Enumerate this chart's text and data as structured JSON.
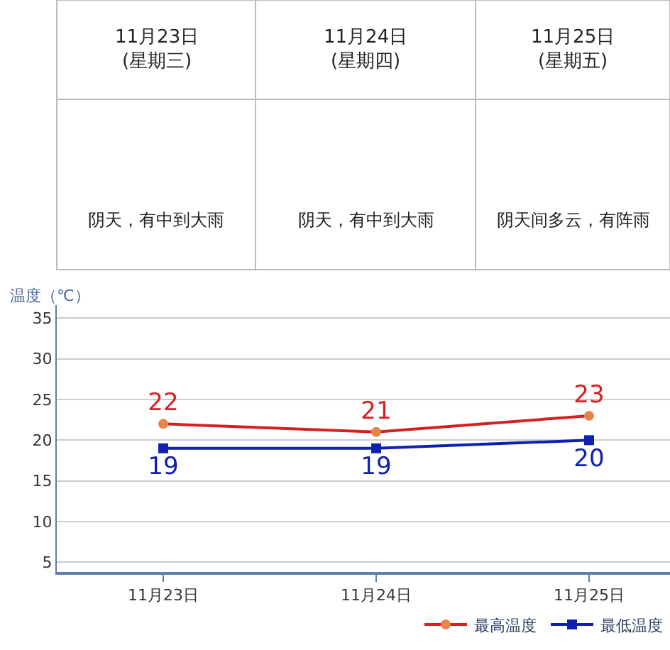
{
  "chart_data": [
    {
      "type": "other",
      "annotations": [
        "11月23日\n(星期三)",
        "阴天，有中到大雨",
        "11月24日\n(星期四)",
        "阴天，有中到大雨",
        "11月25日\n(星期五)",
        "阴天间多云，有阵雨"
      ]
    },
    {
      "type": "line",
      "ylabel": "温度（℃）",
      "categories": [
        "11月23日",
        "11月24日",
        "11月25日"
      ],
      "ylim": [
        3.8,
        36.6
      ],
      "yticks": [
        5,
        10,
        15,
        20,
        25,
        30,
        35
      ],
      "grid": "y",
      "legend": "bottom right",
      "series": [
        {
          "name": "最高温度",
          "color": "#d42020",
          "marker": "circle",
          "values": [
            22,
            21,
            23
          ],
          "value_labels": [
            "22",
            "21",
            "23"
          ]
        },
        {
          "name": "最低温度",
          "color": "#1020b0",
          "marker": "square",
          "values": [
            19,
            19,
            20
          ],
          "value_labels": [
            "19",
            "19",
            "20"
          ]
        }
      ]
    }
  ]
}
